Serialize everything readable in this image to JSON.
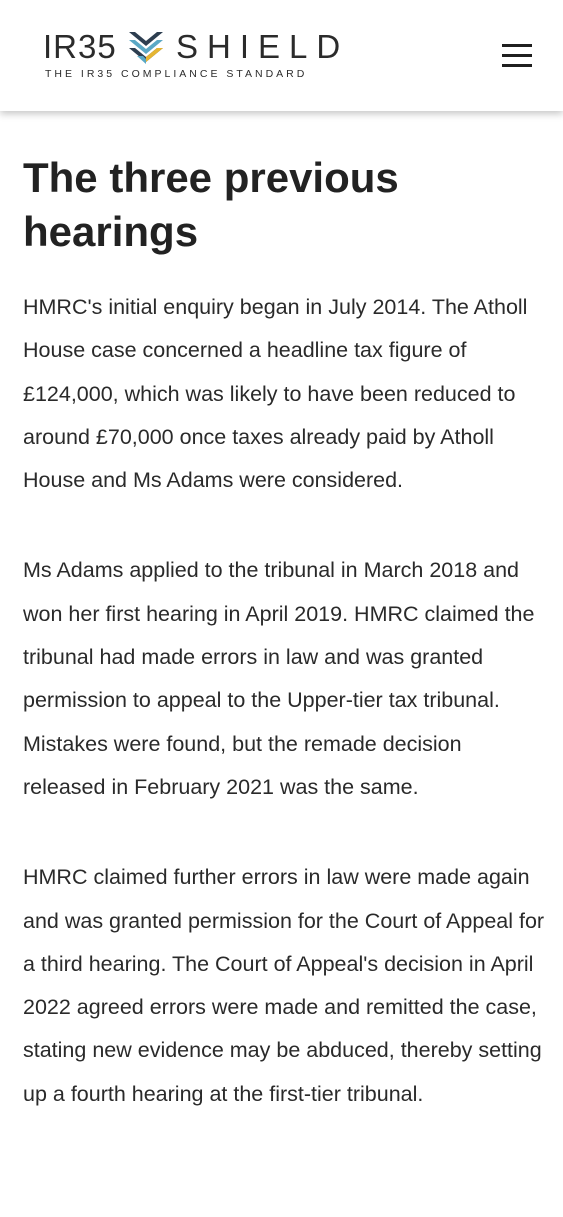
{
  "header": {
    "logo": {
      "word_left": "IR35",
      "word_right": "SHIELD",
      "tagline": "THE IR35 COMPLIANCE STANDARD",
      "mark_icon": "chevron-shield-logo-icon",
      "colors": {
        "navy": "#2d3e50",
        "teal": "#5aa8c5",
        "gold": "#e5b532",
        "text": "#2b2b2b"
      }
    },
    "menu_icon": "hamburger-menu-icon"
  },
  "article": {
    "title": "The three previous hearings",
    "paragraphs": [
      "HMRC's initial enquiry began in July 2014. The Atholl House case concerned a headline tax figure of £124,000, which was likely to have been reduced to around £70,000 once taxes already paid by Atholl House and Ms Adams were considered.",
      "Ms Adams applied to the tribunal in March 2018 and won her first hearing in April 2019. HMRC claimed the tribunal had made errors in law and was granted permission to appeal to the Upper-tier tax tribunal. Mistakes were found, but the remade decision released in February 2021 was the same.",
      "HMRC claimed further errors in law were made again and was granted permission for the Court of Appeal for a third hearing. The Court of Appeal's decision in April 2022 agreed errors were made and remitted the case, stating new evidence may be abduced, thereby setting up a fourth hearing at the first-tier tribunal."
    ]
  }
}
